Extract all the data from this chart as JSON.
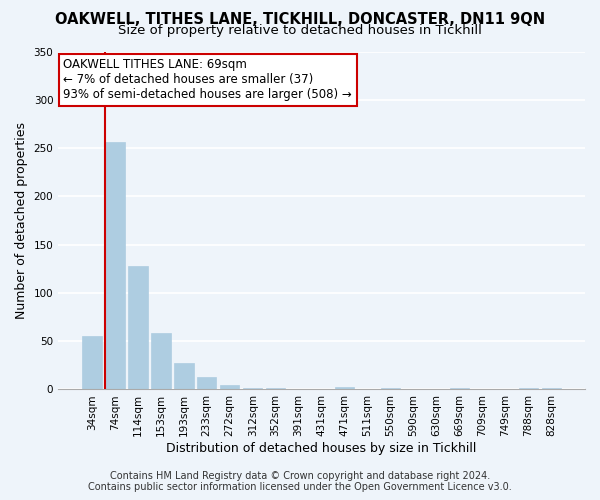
{
  "title": "OAKWELL, TITHES LANE, TICKHILL, DONCASTER, DN11 9QN",
  "subtitle": "Size of property relative to detached houses in Tickhill",
  "xlabel": "Distribution of detached houses by size in Tickhill",
  "ylabel": "Number of detached properties",
  "bar_labels": [
    "34sqm",
    "74sqm",
    "114sqm",
    "153sqm",
    "193sqm",
    "233sqm",
    "272sqm",
    "312sqm",
    "352sqm",
    "391sqm",
    "431sqm",
    "471sqm",
    "511sqm",
    "550sqm",
    "590sqm",
    "630sqm",
    "669sqm",
    "709sqm",
    "749sqm",
    "788sqm",
    "828sqm"
  ],
  "bar_values": [
    55,
    256,
    128,
    58,
    27,
    13,
    5,
    1,
    1,
    0,
    0,
    3,
    0,
    2,
    0,
    0,
    1,
    0,
    0,
    1,
    2
  ],
  "bar_color": "#aecde1",
  "bar_edge_color": "#aecde1",
  "marker_index": 1,
  "marker_color": "#cc0000",
  "annotation_title": "OAKWELL TITHES LANE: 69sqm",
  "annotation_line1": "← 7% of detached houses are smaller (37)",
  "annotation_line2": "93% of semi-detached houses are larger (508) →",
  "annotation_box_color": "#ffffff",
  "annotation_box_edge": "#cc0000",
  "footer_line1": "Contains HM Land Registry data © Crown copyright and database right 2024.",
  "footer_line2": "Contains public sector information licensed under the Open Government Licence v3.0.",
  "ylim": [
    0,
    350
  ],
  "yticks": [
    0,
    50,
    100,
    150,
    200,
    250,
    300,
    350
  ],
  "background_color": "#eef4fa",
  "grid_color": "#ffffff",
  "title_fontsize": 10.5,
  "subtitle_fontsize": 9.5,
  "axis_label_fontsize": 9,
  "tick_fontsize": 7.5,
  "annotation_fontsize": 8.5,
  "footer_fontsize": 7
}
